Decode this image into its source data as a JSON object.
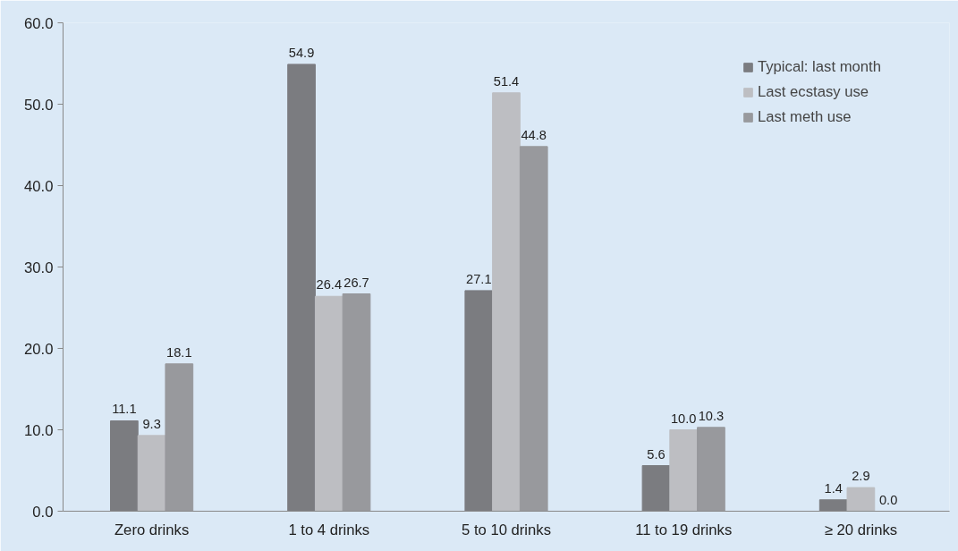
{
  "chart_data": {
    "type": "bar",
    "categories": [
      "Zero drinks",
      "1 to 4 drinks",
      "5 to 10 drinks",
      "11 to 19 drinks",
      "≥ 20 drinks"
    ],
    "series": [
      {
        "name": "Typical: last month",
        "color": "#7b7c80",
        "values": [
          11.1,
          54.9,
          27.1,
          5.6,
          1.4
        ],
        "value_labels": [
          "11.1",
          "54.9",
          "27.1",
          "5.6",
          "1.4"
        ]
      },
      {
        "name": "Last ecstasy use",
        "color": "#bdbec2",
        "values": [
          9.3,
          26.4,
          51.4,
          10.0,
          2.9
        ],
        "value_labels": [
          "9.3",
          "26.4",
          "51.4",
          "10.0",
          "2.9"
        ]
      },
      {
        "name": "Last meth use",
        "color": "#98999d",
        "values": [
          18.1,
          26.7,
          44.8,
          10.3,
          0.0
        ],
        "value_labels": [
          "18.1",
          "26.7",
          "44.8",
          "10.3",
          "0.0"
        ]
      }
    ],
    "ylim": [
      0,
      60
    ],
    "yticks": [
      {
        "value": 0,
        "label": "0.0"
      },
      {
        "value": 10,
        "label": "10.0"
      },
      {
        "value": 20,
        "label": "20.0"
      },
      {
        "value": 30,
        "label": "30.0"
      },
      {
        "value": 40,
        "label": "40.0"
      },
      {
        "value": 50,
        "label": "50.0"
      },
      {
        "value": 60,
        "label": "60.0"
      }
    ],
    "grid": false,
    "legend": "top right"
  }
}
